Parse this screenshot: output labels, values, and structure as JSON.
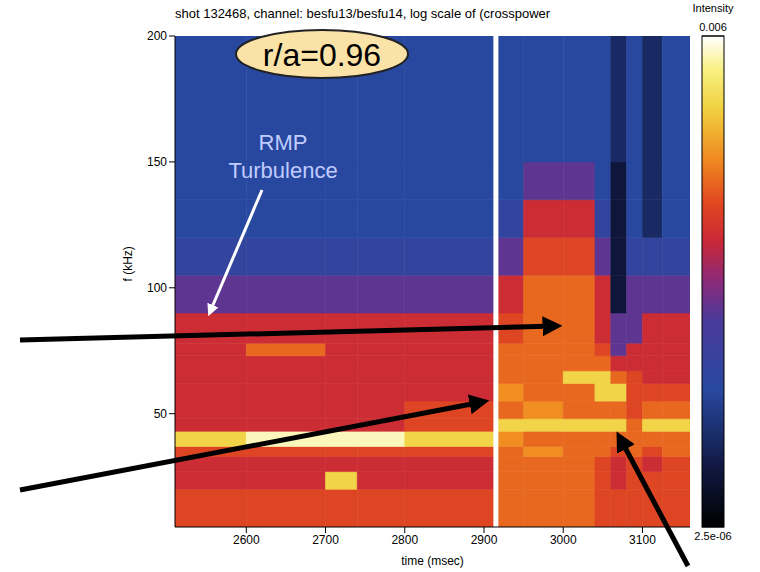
{
  "chart_data": {
    "type": "heatmap",
    "title": "shot 132468, channel: besfu13/besfu14, log scale of (crosspower",
    "x_label": "time (msec)",
    "y_label": "f (kHz)",
    "xlim": [
      2510,
      3160
    ],
    "ylim": [
      5,
      200
    ],
    "xticks": [
      2600,
      2700,
      2800,
      2900,
      3000,
      3100
    ],
    "yticks": [
      50,
      100,
      150,
      200
    ],
    "x_bins": [
      2510,
      2600,
      2700,
      2740,
      2800,
      2915,
      2950,
      3000,
      3040,
      3060,
      3080,
      3100,
      3125,
      3160
    ],
    "y_bins": [
      5,
      20,
      27,
      33,
      37,
      43,
      48,
      55,
      62,
      67,
      73,
      78,
      90,
      105,
      120,
      135,
      150,
      200
    ],
    "cells": [
      [
        0.0004,
        0.0004,
        0.0004,
        0.0004,
        0.0004,
        0.0006,
        0.0006,
        0.0006,
        0.0004,
        0.0004,
        0.0004,
        0.0004,
        0.0004
      ],
      [
        0.00025,
        0.00025,
        0.002,
        0.00025,
        0.00025,
        0.0006,
        0.0006,
        0.0006,
        0.0004,
        0.00025,
        0.0004,
        0.0004,
        0.0004
      ],
      [
        0.00025,
        0.00025,
        0.00025,
        0.00025,
        0.00025,
        0.0006,
        0.0006,
        0.0006,
        0.0004,
        0.00025,
        0.0004,
        0.00025,
        0.0004
      ],
      [
        0.0004,
        0.0004,
        0.0004,
        0.0004,
        0.0004,
        0.0006,
        0.0009,
        0.0006,
        0.0006,
        0.0004,
        0.0006,
        0.0004,
        0.0006
      ],
      [
        0.002,
        0.0045,
        0.0045,
        0.0045,
        0.002,
        0.0009,
        0.0006,
        0.0006,
        0.0006,
        0.0006,
        0.0006,
        0.0006,
        0.0006
      ],
      [
        0.00025,
        0.00025,
        0.00025,
        0.00025,
        0.0004,
        0.002,
        0.002,
        0.002,
        0.002,
        0.002,
        0.0006,
        0.002,
        0.002
      ],
      [
        0.00025,
        0.00025,
        0.00025,
        0.00025,
        0.0004,
        0.0006,
        0.0009,
        0.0006,
        0.0006,
        0.0006,
        0.0004,
        0.0006,
        0.0006
      ],
      [
        0.00025,
        0.00025,
        0.00025,
        0.00025,
        0.00025,
        0.0009,
        0.0006,
        0.0006,
        0.002,
        0.002,
        0.0004,
        0.0004,
        0.0004
      ],
      [
        0.00025,
        0.00025,
        0.00025,
        0.00025,
        0.00025,
        0.0006,
        0.0006,
        0.002,
        0.002,
        0.0006,
        0.0004,
        0.00025,
        0.00025
      ],
      [
        0.00025,
        0.00025,
        0.00025,
        0.00025,
        0.00025,
        0.0006,
        0.0006,
        0.0006,
        0.0006,
        0.00025,
        0.00025,
        0.00025,
        0.00025
      ],
      [
        0.00025,
        0.0006,
        0.00025,
        0.00025,
        0.00025,
        0.0006,
        0.0006,
        0.0006,
        0.0004,
        8e-05,
        0.00025,
        0.00025,
        0.00025
      ],
      [
        0.00025,
        0.00025,
        0.00025,
        0.00025,
        0.00025,
        0.0004,
        0.0006,
        0.0006,
        0.00025,
        8e-05,
        8e-05,
        0.00025,
        0.00025
      ],
      [
        8e-05,
        8e-05,
        8e-05,
        8e-05,
        8e-05,
        0.00025,
        0.0006,
        0.0006,
        0.00025,
        6e-06,
        8e-05,
        8e-05,
        8e-05
      ],
      [
        3e-05,
        3e-05,
        3e-05,
        3e-05,
        3e-05,
        8e-05,
        0.0004,
        0.0004,
        8e-05,
        6e-06,
        3e-05,
        3e-05,
        3e-05
      ],
      [
        2.2e-05,
        2.2e-05,
        2.2e-05,
        2.2e-05,
        2.2e-05,
        3e-05,
        0.00025,
        0.00025,
        3e-05,
        6e-06,
        2.2e-05,
        1e-05,
        2.2e-05
      ],
      [
        2.2e-05,
        2.2e-05,
        2.2e-05,
        2.2e-05,
        2.2e-05,
        2.2e-05,
        8e-05,
        8e-05,
        2.2e-05,
        6e-06,
        2.2e-05,
        1e-05,
        2.2e-05
      ],
      [
        2.2e-05,
        2.2e-05,
        2.2e-05,
        2.2e-05,
        2.2e-05,
        2.2e-05,
        2.2e-05,
        2.2e-05,
        2.2e-05,
        1e-05,
        2.2e-05,
        1e-05,
        2.2e-05
      ]
    ],
    "colorbar": {
      "label": "Intensity",
      "range": [
        2.5e-06,
        0.006
      ],
      "ticks": [
        0.006,
        {
          "value": 2.5e-06,
          "label": "2.5e-06"
        }
      ],
      "log": true
    },
    "vline": 2915,
    "annotations": [
      "r/a=0.96",
      "RMP Turbulence"
    ]
  }
}
